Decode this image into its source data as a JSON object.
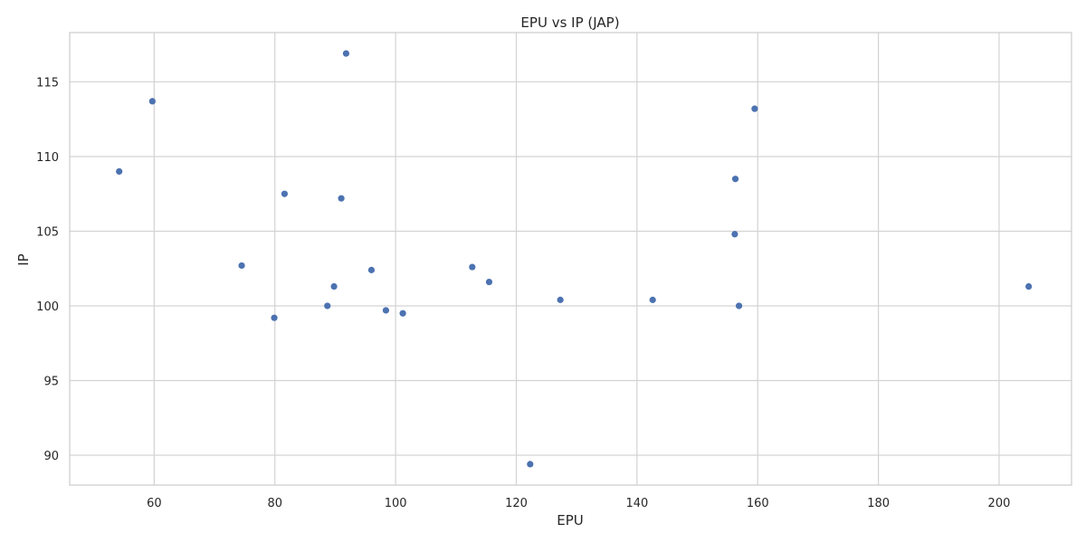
{
  "chart_data": {
    "type": "scatter",
    "title": "EPU vs IP (JAP)",
    "xlabel": "EPU",
    "ylabel": "IP",
    "xlim": [
      46,
      212
    ],
    "ylim": [
      88,
      118.3
    ],
    "xticks": [
      60,
      80,
      100,
      120,
      140,
      160,
      180,
      200
    ],
    "yticks": [
      90,
      95,
      100,
      105,
      110,
      115
    ],
    "grid": true,
    "colors": {
      "marker": "#4c72b0",
      "grid": "#d3d3d3",
      "spine": "#cccccc",
      "text": "#262626",
      "background": "#ffffff"
    },
    "series": [
      {
        "points": [
          {
            "x": 54.2,
            "y": 109.0
          },
          {
            "x": 59.7,
            "y": 113.7
          },
          {
            "x": 74.5,
            "y": 102.7
          },
          {
            "x": 79.9,
            "y": 99.2
          },
          {
            "x": 81.6,
            "y": 107.5
          },
          {
            "x": 88.7,
            "y": 100.0
          },
          {
            "x": 89.8,
            "y": 101.3
          },
          {
            "x": 91.0,
            "y": 107.2
          },
          {
            "x": 91.8,
            "y": 116.9
          },
          {
            "x": 96.0,
            "y": 102.4
          },
          {
            "x": 98.4,
            "y": 99.7
          },
          {
            "x": 101.2,
            "y": 99.5
          },
          {
            "x": 112.7,
            "y": 102.6
          },
          {
            "x": 115.5,
            "y": 101.6
          },
          {
            "x": 122.3,
            "y": 89.4
          },
          {
            "x": 127.3,
            "y": 100.4
          },
          {
            "x": 142.6,
            "y": 100.4
          },
          {
            "x": 156.2,
            "y": 104.8
          },
          {
            "x": 156.3,
            "y": 108.5
          },
          {
            "x": 156.9,
            "y": 100.0
          },
          {
            "x": 159.5,
            "y": 113.2
          },
          {
            "x": 204.9,
            "y": 101.3
          }
        ]
      }
    ]
  }
}
